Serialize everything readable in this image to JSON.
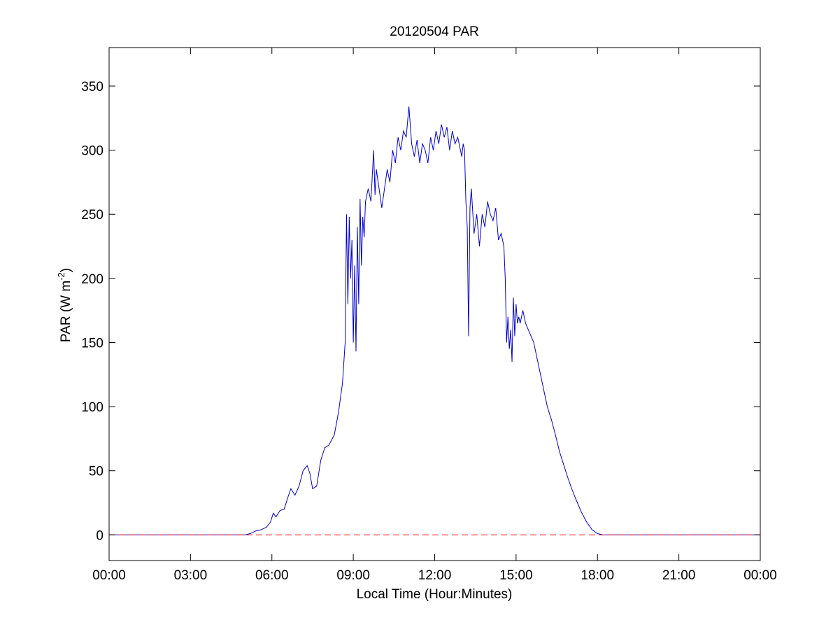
{
  "chart_data": {
    "type": "line",
    "title": "20120504 PAR",
    "xlabel": "Local Time (Hour:Minutes)",
    "ylabel": "PAR (W m^-2)",
    "ylabel_parts": {
      "main": "PAR (W m",
      "sup": "-2",
      "tail": ")"
    },
    "xlim": [
      0,
      24
    ],
    "ylim": [
      -20,
      380
    ],
    "x_ticks": [
      0,
      3,
      6,
      9,
      12,
      15,
      18,
      21,
      24
    ],
    "x_tick_labels": [
      "00:00",
      "03:00",
      "06:00",
      "09:00",
      "12:00",
      "15:00",
      "18:00",
      "21:00",
      "00:00"
    ],
    "y_ticks": [
      0,
      50,
      100,
      150,
      200,
      250,
      300,
      350
    ],
    "y_tick_labels": [
      "0",
      "50",
      "100",
      "150",
      "200",
      "250",
      "300",
      "350"
    ],
    "grid": false,
    "legend": "none",
    "series": [
      {
        "color": "#0000cc",
        "style": "solid",
        "x": [
          0,
          5.0,
          5.2,
          5.4,
          5.6,
          5.8,
          5.95,
          6.05,
          6.15,
          6.3,
          6.45,
          6.6,
          6.7,
          6.85,
          7.0,
          7.15,
          7.3,
          7.4,
          7.5,
          7.65,
          7.8,
          7.95,
          8.1,
          8.3,
          8.45,
          8.6,
          8.7,
          8.75,
          8.8,
          8.85,
          8.9,
          8.95,
          9.0,
          9.05,
          9.1,
          9.15,
          9.2,
          9.25,
          9.3,
          9.35,
          9.4,
          9.45,
          9.55,
          9.65,
          9.75,
          9.8,
          9.85,
          9.95,
          10.05,
          10.15,
          10.25,
          10.35,
          10.45,
          10.55,
          10.65,
          10.75,
          10.85,
          10.95,
          11.05,
          11.15,
          11.25,
          11.35,
          11.45,
          11.55,
          11.65,
          11.75,
          11.85,
          11.95,
          12.05,
          12.15,
          12.25,
          12.35,
          12.45,
          12.55,
          12.65,
          12.75,
          12.85,
          12.95,
          13.0,
          13.05,
          13.1,
          13.15,
          13.2,
          13.25,
          13.3,
          13.35,
          13.45,
          13.55,
          13.65,
          13.75,
          13.85,
          13.95,
          14.05,
          14.15,
          14.25,
          14.35,
          14.45,
          14.55,
          14.6,
          14.65,
          14.7,
          14.75,
          14.8,
          14.85,
          14.9,
          14.95,
          15.0,
          15.05,
          15.1,
          15.15,
          15.25,
          15.35,
          15.45,
          15.55,
          15.65,
          15.75,
          15.85,
          15.95,
          16.05,
          16.15,
          16.3,
          16.45,
          16.6,
          16.75,
          16.9,
          17.05,
          17.2,
          17.4,
          17.6,
          17.8,
          18.0,
          18.2,
          18.4,
          18.6,
          18.8,
          18.95,
          24
        ],
        "y": [
          0,
          0,
          1,
          3,
          4,
          6,
          10,
          17,
          14,
          19,
          20,
          30,
          36,
          31,
          38,
          50,
          54,
          48,
          36,
          38,
          58,
          68,
          70,
          78,
          95,
          118,
          150,
          250,
          180,
          248,
          200,
          230,
          150,
          210,
          143,
          240,
          180,
          262,
          210,
          248,
          232,
          260,
          270,
          260,
          300,
          265,
          285,
          270,
          255,
          270,
          285,
          275,
          300,
          290,
          310,
          300,
          315,
          310,
          334,
          305,
          295,
          308,
          290,
          305,
          300,
          290,
          310,
          300,
          315,
          305,
          320,
          310,
          318,
          300,
          315,
          305,
          310,
          300,
          295,
          305,
          300,
          260,
          240,
          155,
          255,
          270,
          235,
          250,
          225,
          250,
          240,
          260,
          250,
          245,
          255,
          230,
          235,
          225,
          200,
          150,
          170,
          145,
          160,
          135,
          185,
          155,
          180,
          165,
          170,
          165,
          175,
          165,
          160,
          155,
          150,
          140,
          130,
          120,
          110,
          100,
          90,
          78,
          65,
          55,
          45,
          36,
          28,
          18,
          10,
          4,
          1,
          0,
          0,
          0,
          0,
          0,
          0
        ]
      },
      {
        "color": "#ff0000",
        "style": "dashed",
        "x": [
          0,
          24
        ],
        "y": [
          0,
          0
        ]
      }
    ]
  }
}
